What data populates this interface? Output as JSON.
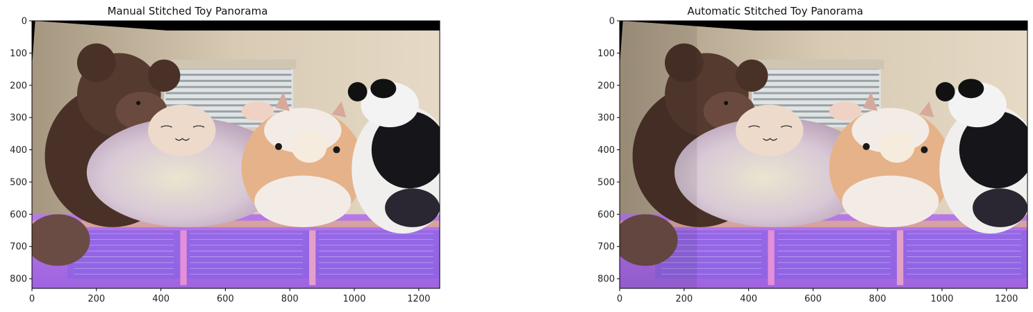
{
  "figure": {
    "panels": [
      {
        "title": "Manual Stitched Toy Panorama",
        "xticks": [
          "0",
          "200",
          "400",
          "600",
          "800",
          "1000",
          "1200"
        ],
        "yticks": [
          "0",
          "100",
          "200",
          "300",
          "400",
          "500",
          "600",
          "700",
          "800"
        ],
        "x_range": [
          0,
          1265
        ],
        "y_range": [
          0,
          830
        ],
        "tick_values_x": [
          0,
          200,
          400,
          600,
          800,
          1000,
          1200
        ],
        "tick_values_y": [
          0,
          100,
          200,
          300,
          400,
          500,
          600,
          700,
          800
        ]
      },
      {
        "title": "Automatic Stitched Toy Panorama",
        "xticks": [
          "0",
          "200",
          "400",
          "600",
          "800",
          "1000",
          "1200"
        ],
        "yticks": [
          "0",
          "100",
          "200",
          "300",
          "400",
          "500",
          "600",
          "700",
          "800"
        ],
        "x_range": [
          0,
          1265
        ],
        "y_range": [
          0,
          830
        ],
        "tick_values_x": [
          0,
          200,
          400,
          600,
          800,
          1000,
          1200
        ],
        "tick_values_y": [
          0,
          100,
          200,
          300,
          400,
          500,
          600,
          700,
          800
        ]
      }
    ]
  }
}
